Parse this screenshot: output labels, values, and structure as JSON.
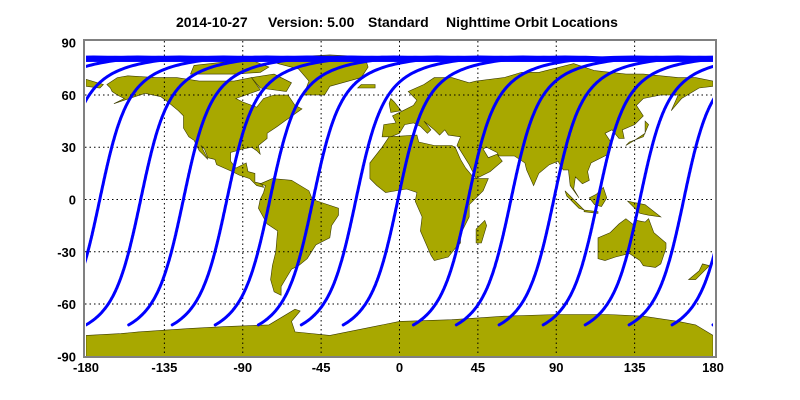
{
  "title": {
    "date": "2014-10-27",
    "version": "Version: 5.00",
    "mode": "Standard",
    "product": "Nighttime Orbit Locations"
  },
  "colors": {
    "land": "#a8a800",
    "coast": "#3a3a00",
    "orbit": "#0000ff",
    "grid": "#000000",
    "frame": "#808080"
  },
  "chart_data": {
    "type": "map",
    "projection": "equirectangular",
    "xlim": [
      -180,
      180
    ],
    "ylim": [
      -90,
      90
    ],
    "grid": true,
    "x_ticks": [
      "-180",
      "-135",
      "-90",
      "-45",
      "0",
      "45",
      "90",
      "135",
      "180"
    ],
    "y_ticks": [
      "90",
      "60",
      "30",
      "0",
      "-30",
      "-60",
      "-90"
    ],
    "x_tick_values": [
      -180,
      -135,
      -90,
      -45,
      0,
      45,
      90,
      135,
      180
    ],
    "y_tick_values": [
      90,
      60,
      30,
      0,
      -30,
      -60,
      -90
    ],
    "orbit_tracks": {
      "start_latitude": -72,
      "max_latitude": 81,
      "start_longitudes": [
        -180,
        -155.5,
        -130.5,
        -105.8,
        -81,
        -56.4,
        -32.3,
        8,
        32.6,
        57.2,
        82.5,
        106.6,
        131.8,
        156.5
      ]
    }
  }
}
